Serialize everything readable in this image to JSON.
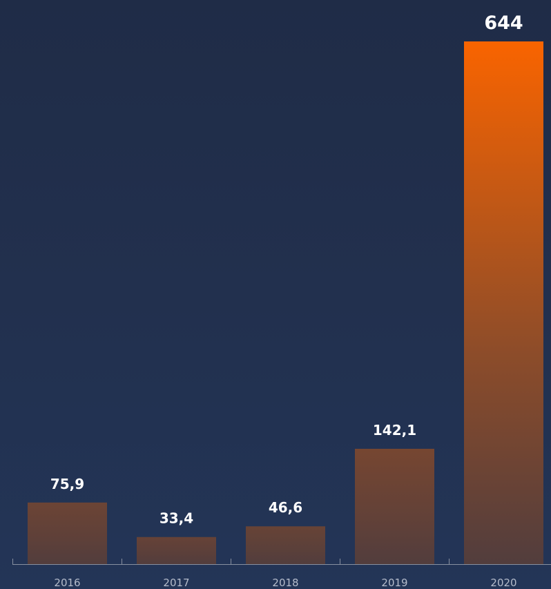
{
  "chart_data": {
    "type": "bar",
    "categories": [
      "2016",
      "2017",
      "2018",
      "2019",
      "2020"
    ],
    "values": [
      75.9,
      33.4,
      46.6,
      142.1,
      644
    ],
    "value_labels": [
      "75,9",
      "33,4",
      "46,6",
      "142,1",
      "644"
    ],
    "title": "",
    "xlabel": "",
    "ylabel": "",
    "ylim": [
      0,
      682
    ],
    "grid": false,
    "legend": "none"
  },
  "colors": {
    "background_top": "#1f2c47",
    "background_bottom": "#233557",
    "bar_bottom": "#523d3d",
    "bar_mid": "#8c4c2a",
    "bar_top_max": "#f96400",
    "axis": "#8890a0",
    "tick_text": "#b5bccb",
    "value_text": "#ffffff"
  }
}
